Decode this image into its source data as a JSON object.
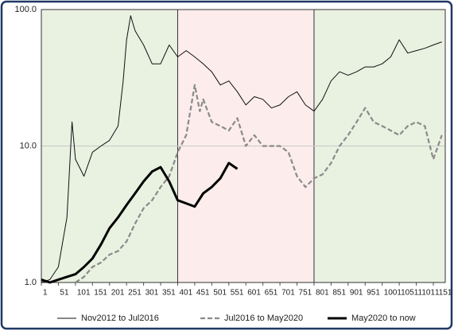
{
  "chart_data": {
    "type": "line",
    "xlim": [
      1,
      1186
    ],
    "xticks": [
      1,
      51,
      101,
      151,
      201,
      251,
      301,
      351,
      401,
      451,
      501,
      551,
      601,
      651,
      701,
      751,
      801,
      851,
      901,
      951,
      1001,
      1051,
      1101,
      1151
    ],
    "ylim": [
      1,
      100
    ],
    "yticks": [
      {
        "value": 1,
        "label": "1.0"
      },
      {
        "value": 10,
        "label": "10.0"
      },
      {
        "value": 100,
        "label": "100.0"
      }
    ],
    "log_y": true,
    "grid": true,
    "legend": "bottom",
    "regions": [
      {
        "from": 1,
        "to": 401,
        "color": "#e9f1e1"
      },
      {
        "from": 401,
        "to": 801,
        "color": "#fcecec"
      },
      {
        "from": 801,
        "to": 1186,
        "color": "#e9f1e1"
      }
    ],
    "series": [
      {
        "name": "Nov2012 to Jul2016",
        "color": "#111111",
        "width": 1,
        "dashed": false,
        "x": [
          1,
          26,
          51,
          76,
          91,
          101,
          126,
          151,
          176,
          201,
          226,
          241,
          251,
          263,
          276,
          301,
          326,
          351,
          376,
          401,
          426,
          451,
          476,
          501,
          526,
          551,
          576,
          601,
          626,
          651,
          676,
          701,
          726,
          751,
          776,
          801,
          826,
          851,
          876,
          901,
          926,
          951,
          976,
          1001,
          1026,
          1051,
          1076,
          1101,
          1126,
          1151,
          1176
        ],
        "values": [
          1.0,
          1.05,
          1.3,
          3,
          15,
          8,
          6,
          9,
          10,
          11,
          14,
          30,
          60,
          90,
          70,
          55,
          40,
          40,
          55,
          45,
          50,
          45,
          40,
          35,
          28,
          30,
          25,
          20,
          23,
          22,
          19,
          20,
          23,
          25,
          20,
          18,
          22,
          30,
          35,
          33,
          35,
          38,
          38,
          40,
          45,
          60,
          48,
          50,
          52,
          55,
          58
        ]
      },
      {
        "name": "Jul2016 to May2020",
        "color": "#8a8a8a",
        "width": 2.2,
        "dashed": true,
        "x": [
          101,
          126,
          151,
          176,
          201,
          226,
          251,
          276,
          301,
          326,
          351,
          376,
          401,
          426,
          451,
          466,
          476,
          501,
          526,
          551,
          576,
          601,
          626,
          651,
          676,
          701,
          726,
          751,
          776,
          801,
          826,
          851,
          876,
          901,
          926,
          951,
          976,
          1001,
          1026,
          1051,
          1076,
          1101,
          1126,
          1151,
          1176
        ],
        "values": [
          1.0,
          1.1,
          1.3,
          1.4,
          1.6,
          1.7,
          2.0,
          2.7,
          3.5,
          4,
          5,
          6,
          9,
          12,
          28,
          18,
          22,
          15,
          14,
          13,
          16,
          10,
          12,
          10,
          10,
          10,
          9,
          6,
          5,
          5.8,
          6.2,
          7.5,
          10,
          12,
          15,
          19,
          15,
          14,
          13,
          12,
          14,
          15,
          14,
          8,
          12
        ]
      },
      {
        "name": "May2020 to now",
        "color": "#000000",
        "width": 3,
        "dashed": false,
        "x": [
          1,
          26,
          51,
          76,
          101,
          126,
          151,
          176,
          201,
          226,
          251,
          276,
          301,
          326,
          351,
          376,
          401,
          426,
          451,
          476,
          501,
          526,
          551,
          576
        ],
        "values": [
          1.05,
          1.0,
          1.05,
          1.1,
          1.15,
          1.3,
          1.5,
          1.9,
          2.5,
          3,
          3.7,
          4.5,
          5.5,
          6.5,
          7,
          5.5,
          4,
          3.8,
          3.6,
          4.5,
          5,
          5.8,
          7.5,
          6.8
        ]
      }
    ]
  }
}
